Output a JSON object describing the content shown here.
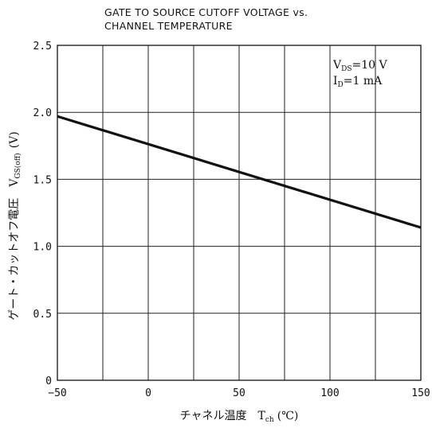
{
  "chart_data": {
    "type": "line",
    "title_lines": [
      "GATE TO SOURCE CUTOFF VOLTAGE vs.",
      "CHANNEL TEMPERATURE"
    ],
    "xlabel": {
      "main": "チャネル温度",
      "symbol": "T",
      "subscript": "ch",
      "unit": "(℃)"
    },
    "ylabel": {
      "main": "ゲート・カットオフ電圧",
      "symbol": "V",
      "subscript": "GS(off)",
      "unit": "(V)"
    },
    "xlim": [
      -50,
      150
    ],
    "ylim": [
      0,
      2.5
    ],
    "x_ticks": [
      -50,
      0,
      50,
      100,
      150
    ],
    "x_tick_labels": [
      "−50",
      "0",
      "50",
      "100",
      "150"
    ],
    "y_ticks": [
      0,
      0.5,
      1.0,
      1.5,
      2.0,
      2.5
    ],
    "y_tick_labels": [
      "0",
      "0.5",
      "1.0",
      "1.5",
      "2.0",
      "2.5"
    ],
    "x_grid_step": 25,
    "y_grid_step": 0.5,
    "grid": true,
    "conditions": [
      {
        "symbol": "V",
        "subscript": "DS",
        "value": "=10  V"
      },
      {
        "symbol": "I",
        "subscript": "D",
        "value": "=1  mA"
      }
    ],
    "series": [
      {
        "x": [
          -50,
          150
        ],
        "y": [
          1.97,
          1.14
        ]
      }
    ]
  }
}
